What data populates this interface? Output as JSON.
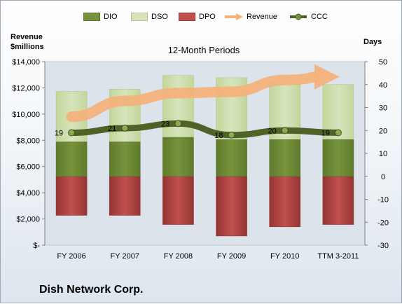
{
  "company": "Dish Network Corp.",
  "chart_data": {
    "type": "bar",
    "title": "12-Month Periods",
    "left_axis_title_line1": "Revenue",
    "left_axis_title_line2": "$millions",
    "right_axis_title": "Days",
    "categories": [
      "FY 2006",
      "FY 2007",
      "FY 2008",
      "FY 2009",
      "FY 2010",
      "TTM 3-2011"
    ],
    "left_ticks": [
      "$14,000",
      "$12,000",
      "$10,000",
      "$8,000",
      "$6,000",
      "$4,000",
      "$2,000",
      "$-"
    ],
    "right_ticks": [
      "50",
      "40",
      "30",
      "20",
      "10",
      "0",
      "-10",
      "-20",
      "-30"
    ],
    "ylim_left": [
      0,
      14000
    ],
    "ylim_right": [
      -30,
      50
    ],
    "legend": [
      "DIO",
      "DSO",
      "DPO",
      "Revenue",
      "CCC"
    ],
    "series": [
      {
        "name": "DIO",
        "axis": "right",
        "values": [
          15,
          15,
          17,
          16,
          16,
          16
        ]
      },
      {
        "name": "DSO",
        "axis": "right",
        "values": [
          37,
          38,
          44,
          43,
          41,
          40
        ]
      },
      {
        "name": "DPO",
        "axis": "right",
        "values": [
          -17,
          -17,
          -21,
          -26,
          -22,
          -21
        ]
      },
      {
        "name": "Revenue",
        "axis": "left",
        "values": [
          9800,
          11000,
          11600,
          11700,
          12600,
          12900
        ]
      },
      {
        "name": "CCC",
        "axis": "right",
        "values": [
          19,
          21,
          23,
          18,
          20,
          19
        ]
      }
    ],
    "ccc_labels": [
      "19",
      "21",
      "23",
      "18",
      "20",
      "19"
    ],
    "colors": {
      "DIO": "#77933c",
      "DSO": "#d7e4bd",
      "DPO": "#c0504d",
      "Revenue": "#f5b17a",
      "CCC": "#4f6228"
    },
    "grid": false
  }
}
